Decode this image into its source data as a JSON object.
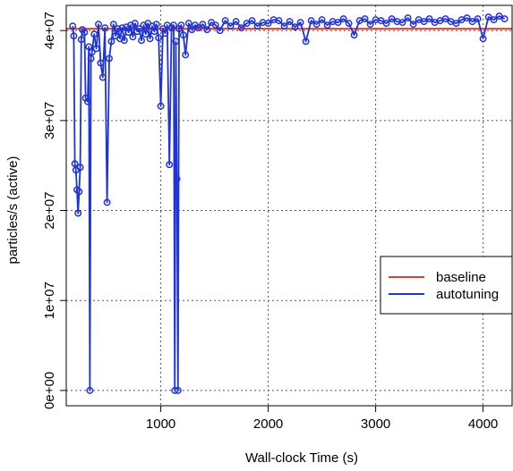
{
  "chart_data": {
    "type": "line",
    "title": "",
    "xlabel": "Wall-clock Time (s)",
    "ylabel": "particles/s (active)",
    "xlim": [
      120,
      4270
    ],
    "ylim": [
      -1700000,
      42800000
    ],
    "xticks": [
      1000,
      2000,
      3000,
      4000
    ],
    "xtick_labels": [
      "1000",
      "2000",
      "3000",
      "4000"
    ],
    "yticks": [
      0,
      10000000,
      20000000,
      30000000,
      40000000
    ],
    "ytick_labels": [
      "0e+00",
      "1e+07",
      "2e+07",
      "3e+07",
      "4e+07"
    ],
    "grid": true,
    "grid_style": "dotted",
    "legend_position": "right",
    "legend": [
      {
        "label": "baseline",
        "color": "#ee3b2a"
      },
      {
        "label": "autotuning",
        "color": "#1f33d6"
      }
    ],
    "series": [
      {
        "name": "baseline",
        "style": "line",
        "color": "#ee3b2a",
        "x": [
          120,
          4270
        ],
        "y": [
          40200000,
          40200000
        ]
      },
      {
        "name": "autotuning",
        "style": "line+circles",
        "color": "#1f33d6",
        "x": [
          180,
          190,
          200,
          210,
          220,
          230,
          240,
          250,
          260,
          270,
          290,
          300,
          320,
          330,
          340,
          350,
          360,
          380,
          400,
          420,
          440,
          460,
          480,
          500,
          520,
          540,
          560,
          580,
          600,
          620,
          640,
          660,
          680,
          700,
          720,
          740,
          760,
          780,
          800,
          820,
          840,
          860,
          880,
          900,
          920,
          940,
          960,
          980,
          1000,
          1020,
          1040,
          1060,
          1080,
          1100,
          1120,
          1130,
          1140,
          1150,
          1160,
          1170,
          1190,
          1210,
          1230,
          1260,
          1290,
          1320,
          1350,
          1390,
          1430,
          1470,
          1510,
          1550,
          1600,
          1650,
          1700,
          1750,
          1800,
          1850,
          1900,
          1950,
          2000,
          2050,
          2100,
          2150,
          2200,
          2250,
          2300,
          2350,
          2400,
          2450,
          2500,
          2550,
          2600,
          2650,
          2700,
          2750,
          2800,
          2850,
          2900,
          2950,
          3000,
          3050,
          3100,
          3150,
          3200,
          3250,
          3300,
          3350,
          3400,
          3450,
          3500,
          3550,
          3600,
          3650,
          3700,
          3750,
          3800,
          3850,
          3900,
          3950,
          4000,
          4050,
          4100,
          4150,
          4200
        ],
        "y": [
          40500000,
          39400000,
          25200000,
          24500000,
          22300000,
          19700000,
          22100000,
          24800000,
          39000000,
          40100000,
          39800000,
          32500000,
          32100000,
          38200000,
          0,
          36900000,
          37600000,
          39600000,
          38000000,
          40700000,
          36400000,
          34800000,
          40300000,
          20900000,
          36900000,
          38800000,
          40700000,
          39400000,
          40200000,
          39100000,
          40300000,
          38900000,
          40400000,
          39800000,
          40600000,
          39300000,
          40800000,
          39900000,
          40200000,
          38900000,
          40600000,
          39600000,
          40800000,
          39100000,
          40500000,
          39900000,
          40700000,
          39200000,
          31600000,
          40200000,
          39700000,
          40600000,
          25100000,
          40300000,
          40600000,
          0,
          38800000,
          23500000,
          0,
          40200000,
          40600000,
          39500000,
          37300000,
          40800000,
          40100000,
          40600000,
          40300000,
          40700000,
          40100000,
          40900000,
          40600000,
          40000000,
          41100000,
          40500000,
          41000000,
          40300000,
          40800000,
          41100000,
          40500000,
          40900000,
          40800000,
          41200000,
          41100000,
          40500000,
          41000000,
          40400000,
          40900000,
          38800000,
          41100000,
          40700000,
          41200000,
          40600000,
          41000000,
          40900000,
          41300000,
          40800000,
          39500000,
          41100000,
          41300000,
          40700000,
          41200000,
          41100000,
          40800000,
          41300000,
          41000000,
          40900000,
          41400000,
          40700000,
          41200000,
          41000000,
          41300000,
          40900000,
          41100000,
          41300000,
          41000000,
          40800000,
          41200000,
          41400000,
          41000000,
          41300000,
          39100000,
          41500000,
          41200000,
          41600000,
          41300000
        ]
      }
    ]
  }
}
